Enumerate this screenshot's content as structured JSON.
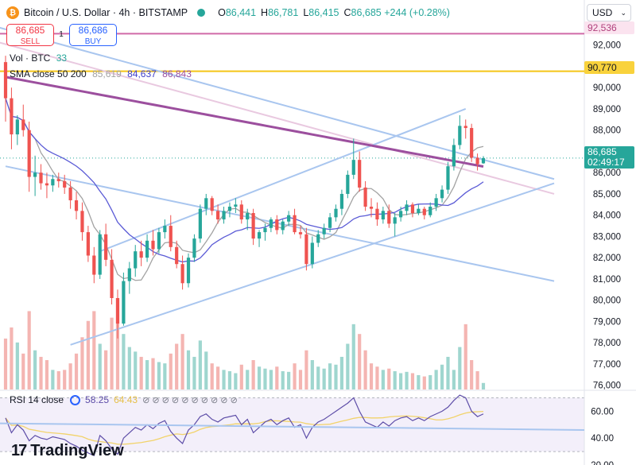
{
  "header": {
    "symbol_title": "Bitcoin / U.S. Dollar · 4h · BITSTAMP",
    "logo_glyph": "₿",
    "ohlc": [
      {
        "k": "O",
        "v": "86,441"
      },
      {
        "k": "H",
        "v": "86,781"
      },
      {
        "k": "L",
        "v": "86,415"
      },
      {
        "k": "C",
        "v": "86,685 +244 (+0.28%)"
      }
    ]
  },
  "trade": {
    "sell_price": "86,685",
    "sell_label": "SELL",
    "buy_price": "86,686",
    "buy_label": "BUY",
    "spread": "1"
  },
  "legend": {
    "vol_name": "Vol · BTC",
    "vol_value": "33",
    "sma_name": "SMA close 50 200",
    "sma_v1": "85,619",
    "sma_v2": "84,637",
    "sma_v3": "86,843"
  },
  "currency": {
    "value": "USD",
    "chevron": "⌄"
  },
  "price_labels": {
    "upper_line": "92,536",
    "horizontal": "90,770",
    "last_price": "86,685",
    "countdown": "02:49:17"
  },
  "rsi": {
    "name": "RSI 14 close",
    "value": "58.25",
    "ma_value": "64.43",
    "dots": "⊘ ⊘ ⊘ ⊘ ⊘ ⊘ ⊘ ⊘ ⊘ ⊘"
  },
  "branding": {
    "logo": "17",
    "name": "TradingView"
  },
  "colors": {
    "up": "#26a69a",
    "down": "#ef5350",
    "up_vol": "#9fd6cf",
    "down_vol": "#f4b5b2",
    "sma_short": "#a3a3a3",
    "sma_mid": "#5b5bd6",
    "sma_long": "#9c4f9e",
    "trendline": "#a9c6ef",
    "trendline_pink": "#e9c9e0",
    "upper_hline": "#d06aa8",
    "hline": "#f5c518",
    "rsi_line": "#5e4ea8",
    "rsi_ma": "#f2d36b"
  },
  "chart_data": {
    "type": "candlestick",
    "interval": "4h",
    "y_axis_ticks": [
      "92,000",
      "91,000",
      "90,000",
      "89,000",
      "88,000",
      "87,000",
      "86,000",
      "85,000",
      "84,000",
      "83,000",
      "82,000",
      "81,000",
      "80,000",
      "79,000",
      "78,000",
      "77,000",
      "76,000"
    ],
    "ylim": [
      75800,
      93000
    ],
    "candles": [
      [
        91200,
        91500,
        88400,
        89500
      ],
      [
        89500,
        90000,
        87100,
        87800
      ],
      [
        87800,
        88700,
        87300,
        88500
      ],
      [
        88500,
        89200,
        87700,
        88000
      ],
      [
        88000,
        88400,
        85100,
        85800
      ],
      [
        85800,
        86800,
        84900,
        86000
      ],
      [
        86000,
        86400,
        85200,
        85500
      ],
      [
        85500,
        86000,
        84800,
        85400
      ],
      [
        85400,
        85900,
        85100,
        85700
      ],
      [
        85700,
        86000,
        85300,
        85600
      ],
      [
        85600,
        85900,
        85000,
        85300
      ],
      [
        85300,
        85600,
        84300,
        84700
      ],
      [
        84700,
        85100,
        83800,
        84200
      ],
      [
        84200,
        84600,
        82800,
        83200
      ],
      [
        83200,
        83500,
        81800,
        82100
      ],
      [
        82100,
        82500,
        80800,
        81200
      ],
      [
        81200,
        83300,
        81000,
        83100
      ],
      [
        83100,
        83600,
        81600,
        81900
      ],
      [
        81900,
        82400,
        79800,
        80100
      ],
      [
        80100,
        80500,
        78200,
        78900
      ],
      [
        78900,
        81300,
        78800,
        80900
      ],
      [
        80900,
        81800,
        80300,
        81500
      ],
      [
        81500,
        82600,
        81100,
        82300
      ],
      [
        82300,
        82800,
        81600,
        82000
      ],
      [
        82000,
        83100,
        81800,
        82800
      ],
      [
        82800,
        83300,
        82100,
        82400
      ],
      [
        82400,
        83400,
        82200,
        83200
      ],
      [
        83200,
        83800,
        82900,
        83500
      ],
      [
        83500,
        84000,
        82300,
        82500
      ],
      [
        82500,
        82800,
        81500,
        81700
      ],
      [
        81700,
        82100,
        80500,
        80800
      ],
      [
        80800,
        82200,
        80600,
        82000
      ],
      [
        82000,
        83100,
        81800,
        82900
      ],
      [
        82900,
        84500,
        82700,
        84300
      ],
      [
        84300,
        85000,
        84000,
        84800
      ],
      [
        84800,
        84900,
        84000,
        84200
      ],
      [
        84200,
        84500,
        83600,
        83800
      ],
      [
        83800,
        84400,
        83600,
        84200
      ],
      [
        84200,
        84600,
        83900,
        84400
      ],
      [
        84400,
        84800,
        84100,
        84500
      ],
      [
        84500,
        84700,
        83600,
        83800
      ],
      [
        83800,
        84300,
        83300,
        84100
      ],
      [
        84100,
        84300,
        82600,
        82900
      ],
      [
        82900,
        83300,
        82500,
        83200
      ],
      [
        83200,
        83600,
        82800,
        83400
      ],
      [
        83400,
        83900,
        83200,
        83800
      ],
      [
        83800,
        84000,
        83100,
        83300
      ],
      [
        83300,
        83800,
        83100,
        83700
      ],
      [
        83700,
        84200,
        83500,
        84000
      ],
      [
        84000,
        84300,
        83100,
        83200
      ],
      [
        83200,
        83500,
        82900,
        83100
      ],
      [
        83100,
        83400,
        81400,
        81700
      ],
      [
        81700,
        83000,
        81500,
        82700
      ],
      [
        82700,
        83300,
        82500,
        83100
      ],
      [
        83100,
        83600,
        82900,
        83400
      ],
      [
        83400,
        84100,
        83200,
        83900
      ],
      [
        83900,
        84500,
        83700,
        84300
      ],
      [
        84300,
        85200,
        84000,
        85000
      ],
      [
        85000,
        86100,
        84800,
        85900
      ],
      [
        85900,
        87600,
        85700,
        86600
      ],
      [
        86600,
        87000,
        85100,
        85300
      ],
      [
        85300,
        85600,
        84200,
        84400
      ],
      [
        84400,
        84800,
        83900,
        84300
      ],
      [
        84300,
        84600,
        83500,
        83800
      ],
      [
        83800,
        84400,
        83600,
        84200
      ],
      [
        84200,
        84500,
        83400,
        83600
      ],
      [
        83600,
        84100,
        83000,
        83900
      ],
      [
        83900,
        84400,
        83700,
        84200
      ],
      [
        84200,
        84700,
        84000,
        84500
      ],
      [
        84500,
        84600,
        83900,
        84100
      ],
      [
        84100,
        84500,
        84000,
        84300
      ],
      [
        84300,
        84400,
        83800,
        84000
      ],
      [
        84000,
        84600,
        83900,
        84400
      ],
      [
        84400,
        85000,
        84200,
        84800
      ],
      [
        84800,
        85400,
        84600,
        85200
      ],
      [
        85200,
        86500,
        85000,
        86300
      ],
      [
        86300,
        87600,
        86100,
        87300
      ],
      [
        87300,
        88700,
        87100,
        88200
      ],
      [
        88200,
        88500,
        87600,
        88100
      ],
      [
        88100,
        88300,
        86500,
        86700
      ],
      [
        86700,
        86900,
        86100,
        86400
      ],
      [
        86441,
        86781,
        86415,
        86685
      ]
    ],
    "volume": [
      78000,
      95000,
      72000,
      55000,
      120000,
      60000,
      50000,
      45000,
      30000,
      28000,
      30000,
      40000,
      55000,
      80000,
      105000,
      120000,
      70000,
      60000,
      110000,
      140000,
      85000,
      65000,
      58000,
      50000,
      45000,
      48000,
      42000,
      40000,
      55000,
      70000,
      85000,
      60000,
      50000,
      75000,
      58000,
      40000,
      35000,
      30000,
      28000,
      25000,
      38000,
      30000,
      45000,
      35000,
      32000,
      30000,
      35000,
      28000,
      27000,
      40000,
      30000,
      60000,
      45000,
      35000,
      32000,
      40000,
      38000,
      50000,
      70000,
      100000,
      85000,
      60000,
      40000,
      35000,
      30000,
      32000,
      28000,
      25000,
      27000,
      25000,
      22000,
      20000,
      22000,
      30000,
      38000,
      50000,
      30000,
      65000,
      100000,
      45000,
      28000,
      10000
    ],
    "rsi_ylim": [
      20,
      75
    ],
    "rsi_ticks": [
      "60.00",
      "40.00",
      "20.00"
    ],
    "rsi": [
      55,
      44,
      50,
      46,
      38,
      42,
      40,
      39,
      41,
      40,
      39,
      36,
      34,
      31,
      29,
      27,
      42,
      38,
      32,
      28,
      40,
      44,
      48,
      46,
      50,
      47,
      51,
      53,
      45,
      40,
      36,
      46,
      50,
      56,
      58,
      54,
      52,
      55,
      56,
      57,
      50,
      54,
      44,
      48,
      52,
      54,
      50,
      53,
      55,
      48,
      50,
      40,
      48,
      52,
      54,
      57,
      60,
      63,
      66,
      70,
      60,
      52,
      50,
      48,
      52,
      49,
      53,
      55,
      56,
      53,
      55,
      53,
      56,
      58,
      60,
      63,
      68,
      72,
      70,
      60,
      56,
      58
    ]
  }
}
